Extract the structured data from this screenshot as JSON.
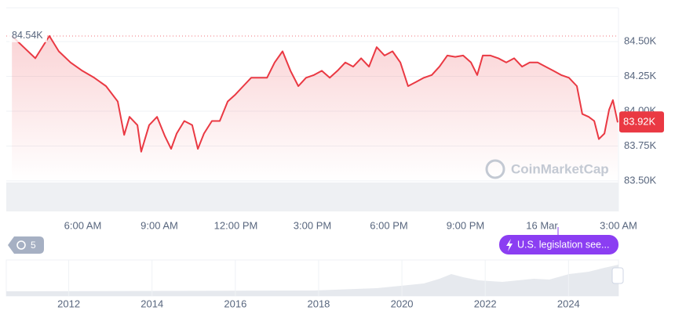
{
  "chart_data": {
    "type": "line",
    "x": [
      3.22,
      3.68,
      4.14,
      4.69,
      5.06,
      5.52,
      5.98,
      6.45,
      6.91,
      7.37,
      7.62,
      7.83,
      8.14,
      8.29,
      8.6,
      8.91,
      9.22,
      9.46,
      9.68,
      9.98,
      10.29,
      10.51,
      10.75,
      11.06,
      11.37,
      11.68,
      11.98,
      12.29,
      12.6,
      12.91,
      13.22,
      13.52,
      13.83,
      14.14,
      14.45,
      14.75,
      15.06,
      15.37,
      15.68,
      15.98,
      16.29,
      16.6,
      16.91,
      17.22,
      17.52,
      17.83,
      18.14,
      18.45,
      18.75,
      19.06,
      19.37,
      19.68,
      19.98,
      20.29,
      20.6,
      20.91,
      21.22,
      21.46,
      21.68,
      21.98,
      22.29,
      22.6,
      22.91,
      23.22,
      23.52,
      23.83,
      24.14,
      24.45,
      24.75,
      25.06,
      25.37,
      25.58,
      25.83,
      26.05,
      26.23,
      26.45,
      26.63,
      26.78,
      26.97
    ],
    "series": [
      {
        "color": "#ea3943",
        "values": [
          84540,
          84460,
          84380,
          84540,
          84430,
          84350,
          84290,
          84240,
          84180,
          84070,
          83830,
          83960,
          83900,
          83710,
          83900,
          83960,
          83820,
          83730,
          83840,
          83930,
          83900,
          83730,
          83840,
          83930,
          83930,
          84070,
          84120,
          84180,
          84240,
          84240,
          84240,
          84350,
          84430,
          84290,
          84180,
          84240,
          84260,
          84290,
          84240,
          84290,
          84350,
          84320,
          84380,
          84320,
          84460,
          84400,
          84430,
          84350,
          84180,
          84210,
          84240,
          84260,
          84320,
          84400,
          84390,
          84400,
          84350,
          84260,
          84400,
          84400,
          84380,
          84350,
          84380,
          84320,
          84350,
          84350,
          84320,
          84290,
          84260,
          84240,
          84180,
          83980,
          83960,
          83930,
          83800,
          83840,
          84010,
          84080,
          83920
        ]
      }
    ],
    "xlim": [
      3,
      27
    ],
    "xticks": [
      {
        "value": 6,
        "label": "6:00 AM"
      },
      {
        "value": 9,
        "label": "9:00 AM"
      },
      {
        "value": 12,
        "label": "12:00 PM"
      },
      {
        "value": 15,
        "label": "3:00 PM"
      },
      {
        "value": 18,
        "label": "6:00 PM"
      },
      {
        "value": 21,
        "label": "9:00 PM"
      },
      {
        "value": 24,
        "label": "16 Mar"
      },
      {
        "value": 27,
        "label": "3:00 AM"
      }
    ],
    "ylim": [
      83281,
      84742
    ],
    "yticks": [
      {
        "value": 83500,
        "label": "83.50K"
      },
      {
        "value": 83750,
        "label": "83.75K"
      },
      {
        "value": 84000,
        "label": "84.00K"
      },
      {
        "value": 84250,
        "label": "84.25K"
      },
      {
        "value": 84500,
        "label": "84.50K"
      }
    ],
    "grid": true,
    "reference_line": {
      "value": 84540,
      "label": "84.54K"
    },
    "current_price": {
      "value": 83920,
      "label": "83.92K"
    },
    "watermark": "CoinMarketCap",
    "history_badge": 5,
    "event_badge": "U.S. legislation see...",
    "navigator": {
      "xlim": [
        2010.5,
        2025.2
      ],
      "xticks": [
        2012,
        2014,
        2016,
        2018,
        2020,
        2022,
        2024
      ]
    }
  }
}
